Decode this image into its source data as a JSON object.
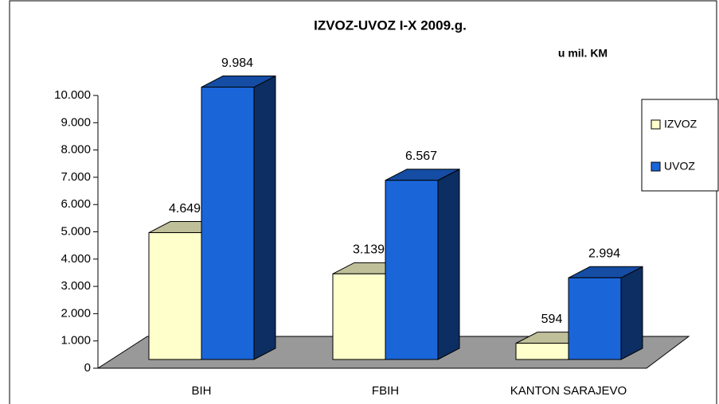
{
  "chart_data": {
    "type": "bar3d",
    "title": "IZVOZ-UVOZ    I-X  2009.g.",
    "subtitle": "u mil. KM",
    "categories": [
      "BIH",
      "FBIH",
      "KANTON SARAJEVO"
    ],
    "series": [
      {
        "name": "IZVOZ",
        "color": "#ffffcc",
        "values": [
          4649,
          3139,
          594
        ],
        "value_labels": [
          "4.649",
          "3.139",
          "594"
        ]
      },
      {
        "name": "UVOZ",
        "color": "#1a66d9",
        "values": [
          9984,
          6567,
          2994
        ],
        "value_labels": [
          "9.984",
          "6.567",
          "2.994"
        ]
      }
    ],
    "ylim": [
      0,
      10000
    ],
    "yticks": [
      0,
      {
        "value": 1000,
        "label": "1.000"
      },
      {
        "value": 2000,
        "label": "2.000"
      },
      {
        "value": 3000,
        "label": "3.000"
      },
      {
        "value": 4000,
        "label": "4.000"
      },
      {
        "value": 5000,
        "label": "5.000"
      },
      {
        "value": 6000,
        "label": "6.000"
      },
      {
        "value": 7000,
        "label": "7.000"
      },
      {
        "value": 8000,
        "label": "8.000"
      },
      {
        "value": 9000,
        "label": "9.000"
      },
      {
        "value": 10000,
        "label": "10.000"
      }
    ],
    "legend": "right"
  }
}
